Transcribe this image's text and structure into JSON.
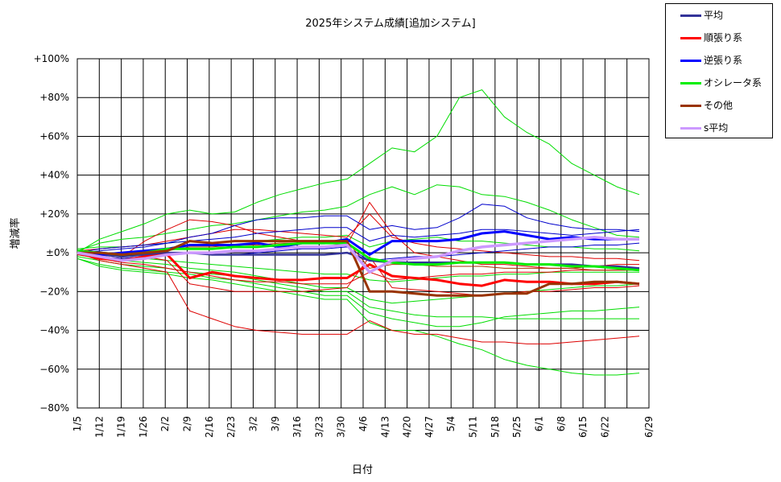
{
  "chart_data": {
    "type": "line",
    "title": "2025年システム成績[追加システム]",
    "xlabel": "日付",
    "ylabel": "増減率",
    "x": [
      "1/5",
      "1/12",
      "1/19",
      "1/26",
      "2/2",
      "2/9",
      "2/16",
      "2/23",
      "3/2",
      "3/9",
      "3/16",
      "3/23",
      "3/30",
      "4/6",
      "4/13",
      "4/20",
      "4/27",
      "5/4",
      "5/11",
      "5/18",
      "5/25",
      "6/1",
      "6/8",
      "6/15",
      "6/22",
      "6/29"
    ],
    "y_ticks": [
      "+100%",
      "+80%",
      "+60%",
      "+40%",
      "+20%",
      "±0%",
      "−20%",
      "−40%",
      "−60%",
      "−80%"
    ],
    "ylim": [
      -80,
      100
    ],
    "grid": true,
    "legend_position": "right-top",
    "series": [
      {
        "name": "平均",
        "color": "#333399",
        "width": 2.5,
        "values": [
          0,
          -1,
          -2,
          -1,
          0,
          0,
          -1,
          -1,
          -1,
          -1,
          -1,
          -1,
          0,
          -4,
          -5,
          -5,
          -5,
          -5,
          -5,
          -5,
          -6,
          -6,
          -6,
          -7,
          -7,
          -8
        ]
      },
      {
        "name": "順張り系",
        "color": "#ff0000",
        "width": 3,
        "values": [
          0,
          -3,
          -4,
          -2,
          -1,
          -13,
          -10,
          -12,
          -13,
          -14,
          -14,
          -13,
          -13,
          -6,
          -12,
          -13,
          -14,
          -16,
          -17,
          -14,
          -15,
          -15,
          -16,
          -16,
          -15,
          -16
        ]
      },
      {
        "name": "逆張り系",
        "color": "#0000ff",
        "width": 3,
        "values": [
          0,
          -1,
          0,
          1,
          2,
          4,
          4,
          4,
          5,
          3,
          5,
          5,
          7,
          -1,
          6,
          6,
          6,
          7,
          10,
          11,
          9,
          7,
          8,
          7,
          7,
          7
        ]
      },
      {
        "name": "オシレータ系",
        "color": "#00ee00",
        "width": 3,
        "values": [
          1,
          0,
          -1,
          0,
          2,
          2,
          2,
          3,
          3,
          4,
          5,
          5,
          5,
          -3,
          -5,
          -6,
          -6,
          -5,
          -5,
          -5,
          -6,
          -6,
          -7,
          -7,
          -8,
          -9
        ]
      },
      {
        "name": "その他",
        "color": "#993300",
        "width": 3,
        "values": [
          0,
          0,
          -1,
          0,
          1,
          6,
          5,
          6,
          6,
          6,
          6,
          6,
          6,
          -20,
          -20,
          -21,
          -22,
          -22,
          -22,
          -21,
          -21,
          -16,
          -16,
          -15,
          -15,
          -16
        ]
      },
      {
        "name": "s平均",
        "color": "#cc99ff",
        "width": 3.5,
        "values": [
          0,
          -2,
          -4,
          -3,
          -1,
          0,
          0,
          1,
          1,
          2,
          3,
          3,
          4,
          -10,
          -4,
          -3,
          -2,
          1,
          3,
          4,
          5,
          6,
          7,
          8,
          7,
          7
        ]
      }
    ],
    "background_series": [
      {
        "color": "#00dd00",
        "values": [
          0,
          7,
          11,
          15,
          20,
          22,
          20,
          21,
          26,
          30,
          33,
          36,
          38,
          46,
          54,
          52,
          60,
          80,
          84,
          70,
          62,
          56,
          46,
          40,
          34,
          30
        ]
      },
      {
        "color": "#00dd00",
        "values": [
          1,
          5,
          7,
          8,
          10,
          12,
          14,
          15,
          17,
          19,
          21,
          22,
          24,
          30,
          34,
          30,
          35,
          34,
          30,
          29,
          26,
          22,
          17,
          13,
          9,
          8
        ]
      },
      {
        "color": "#00dd00",
        "values": [
          2,
          3,
          3,
          4,
          5,
          6,
          5,
          6,
          6,
          7,
          8,
          8,
          9,
          3,
          6,
          7,
          8,
          6,
          6,
          5,
          4,
          3,
          3,
          2,
          2,
          1
        ]
      },
      {
        "color": "#00dd00",
        "values": [
          -1,
          -3,
          -4,
          -5,
          -6,
          -8,
          -9,
          -10,
          -12,
          -14,
          -16,
          -18,
          -18,
          -24,
          -26,
          -25,
          -24,
          -23,
          -22,
          -21,
          -20,
          -19,
          -18,
          -17,
          -17,
          -16
        ]
      },
      {
        "color": "#00dd00",
        "values": [
          -2,
          -4,
          -6,
          -7,
          -8,
          -10,
          -11,
          -12,
          -14,
          -16,
          -18,
          -20,
          -20,
          -28,
          -30,
          -32,
          -33,
          -33,
          -33,
          -34,
          -34,
          -34,
          -34,
          -34,
          -34,
          -34
        ]
      },
      {
        "color": "#00dd00",
        "values": [
          -3,
          -6,
          -8,
          -9,
          -10,
          -11,
          -13,
          -14,
          -16,
          -18,
          -20,
          -22,
          -22,
          -31,
          -34,
          -36,
          -38,
          -38,
          -36,
          -33,
          -32,
          -31,
          -30,
          -30,
          -29,
          -28
        ]
      },
      {
        "color": "#00dd00",
        "values": [
          -3,
          -7,
          -9,
          -10,
          -11,
          -13,
          -14,
          -16,
          -18,
          -20,
          -22,
          -24,
          -24,
          -36,
          -40,
          -40,
          -43,
          -47,
          -50,
          -55,
          -58,
          -60,
          -62,
          -63,
          -63,
          -62
        ]
      },
      {
        "color": "#00dd00",
        "values": [
          0,
          -2,
          -3,
          -3,
          -4,
          -5,
          -6,
          -7,
          -8,
          -9,
          -10,
          -11,
          -11,
          -14,
          -15,
          -14,
          -13,
          -12,
          -12,
          -11,
          -11,
          -10,
          -10,
          -10,
          -10,
          -10
        ]
      },
      {
        "color": "#dd0000",
        "values": [
          0,
          -4,
          -6,
          -8,
          -10,
          -30,
          -34,
          -38,
          -40,
          -41,
          -42,
          -42,
          -42,
          -35,
          -40,
          -42,
          -42,
          -44,
          -46,
          -46,
          -47,
          -47,
          -46,
          -45,
          -44,
          -43
        ]
      },
      {
        "color": "#dd0000",
        "values": [
          0,
          -2,
          -3,
          -2,
          -4,
          -16,
          -18,
          -20,
          -20,
          -20,
          -20,
          -19,
          -18,
          -2,
          -18,
          -19,
          -20,
          -21,
          -22,
          -21,
          -20,
          -20,
          -19,
          -18,
          -18,
          -17
        ]
      },
      {
        "color": "#dd0000",
        "values": [
          0,
          -1,
          -2,
          6,
          12,
          17,
          16,
          14,
          10,
          8,
          6,
          5,
          4,
          26,
          10,
          0,
          -2,
          -4,
          -6,
          -6,
          -7,
          -8,
          -8,
          -7,
          -6,
          -6
        ]
      },
      {
        "color": "#dd0000",
        "values": [
          1,
          2,
          3,
          4,
          6,
          8,
          10,
          12,
          12,
          11,
          10,
          9,
          8,
          20,
          8,
          5,
          3,
          2,
          1,
          0,
          -1,
          -2,
          -2,
          -3,
          -3,
          -4
        ]
      },
      {
        "color": "#dd0000",
        "values": [
          -1,
          -3,
          -5,
          -6,
          -8,
          -10,
          -12,
          -14,
          -15,
          -15,
          -16,
          -16,
          -16,
          -10,
          -14,
          -13,
          -12,
          -11,
          -11,
          -10,
          -10,
          -10,
          -9,
          -9,
          -9,
          -9
        ]
      },
      {
        "color": "#0000cc",
        "values": [
          0,
          1,
          2,
          3,
          5,
          8,
          10,
          14,
          17,
          18,
          18,
          19,
          19,
          12,
          14,
          12,
          13,
          18,
          25,
          24,
          18,
          15,
          13,
          12,
          12,
          11
        ]
      },
      {
        "color": "#0000cc",
        "values": [
          0,
          2,
          3,
          4,
          5,
          6,
          7,
          8,
          10,
          11,
          12,
          13,
          13,
          6,
          9,
          8,
          9,
          10,
          12,
          12,
          11,
          10,
          9,
          10,
          11,
          12
        ]
      },
      {
        "color": "#0000cc",
        "values": [
          0,
          -2,
          -3,
          -2,
          -1,
          0,
          -1,
          -1,
          0,
          1,
          2,
          2,
          3,
          -4,
          -3,
          -2,
          -2,
          -1,
          0,
          1,
          2,
          3,
          3,
          4,
          4,
          5
        ]
      },
      {
        "color": "#aa3300",
        "values": [
          0,
          -1,
          -2,
          -1,
          1,
          3,
          3,
          4,
          4,
          5,
          5,
          5,
          6,
          -8,
          -6,
          -6,
          -7,
          -7,
          -7,
          -8,
          -8,
          -8,
          -8,
          -9,
          -9,
          -9
        ]
      }
    ]
  }
}
